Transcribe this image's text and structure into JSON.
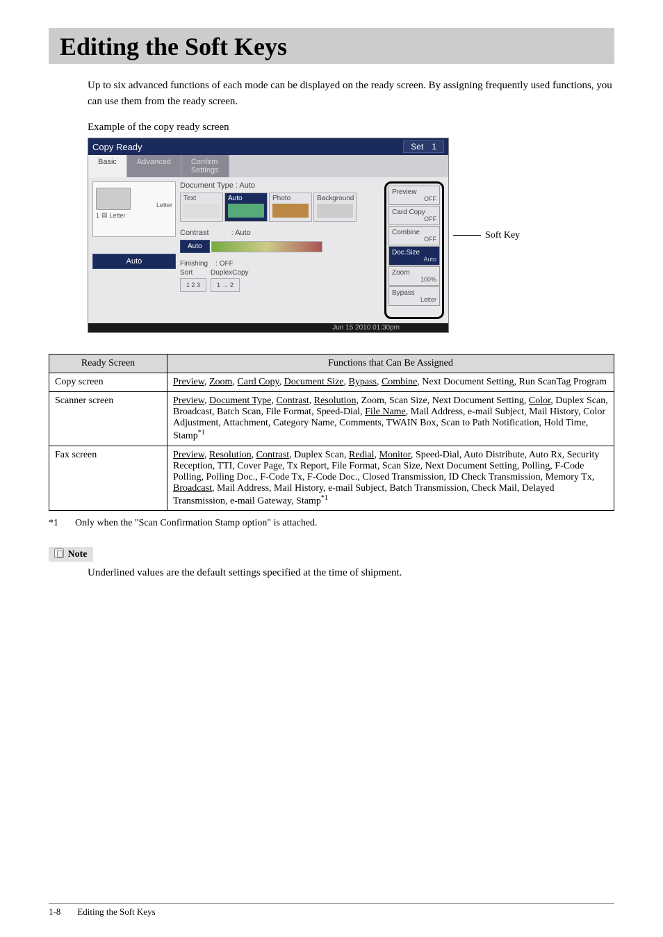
{
  "heading": "Editing the Soft Keys",
  "intro": "Up to six advanced functions of each mode can be displayed on the ready screen. By assigning frequently used functions, you can use them from the ready screen.",
  "example_caption": "Example of the copy ready screen",
  "screenshot": {
    "titlebar": "Copy Ready",
    "set_button": "Set",
    "set_count": "1",
    "tabs": {
      "basic": "Basic",
      "advanced": "Advanced",
      "confirm": "Confirm\nSettings"
    },
    "paper": {
      "letter_top": "Letter",
      "tray_num": "1",
      "tray_label": "Letter",
      "auto": "Auto"
    },
    "doc_type_label": "Document Type : Auto",
    "doc_types": {
      "text": "Text",
      "auto": "Auto",
      "photo": "Photo",
      "background": "Background"
    },
    "contrast_label": "Contrast",
    "contrast_value": ": Auto",
    "contrast_auto": "Auto",
    "finishing_label": "Finishing",
    "finishing_value": ": OFF",
    "sort_label": "Sort",
    "duplex_label": "DuplexCopy",
    "softkeys": [
      {
        "name": "Preview",
        "val": "OFF"
      },
      {
        "name": "Card Copy",
        "val": "OFF"
      },
      {
        "name": "Combine",
        "val": "OFF"
      },
      {
        "name": "Doc.Size",
        "val": "Auto",
        "selected": true
      },
      {
        "name": "Zoom",
        "val": "100%"
      },
      {
        "name": "Bypass",
        "val": "Letter"
      }
    ],
    "statusbar": "Jun 15 2010 01:30pm"
  },
  "callout_label": "Soft Key",
  "table": {
    "head_col1": "Ready Screen",
    "head_col2": "Functions that Can Be Assigned",
    "rows": [
      {
        "c1": "Copy screen",
        "segments": [
          {
            "t": "Preview",
            "u": 1
          },
          {
            "t": ", "
          },
          {
            "t": "Zoom",
            "u": 1
          },
          {
            "t": ", "
          },
          {
            "t": "Card Copy",
            "u": 1
          },
          {
            "t": ", "
          },
          {
            "t": "Document Size",
            "u": 1
          },
          {
            "t": ", "
          },
          {
            "t": "Bypass",
            "u": 1
          },
          {
            "t": ", "
          },
          {
            "t": "Combine",
            "u": 1
          },
          {
            "t": ", Next Document Setting, Run ScanTag Program"
          }
        ]
      },
      {
        "c1": "Scanner screen",
        "segments": [
          {
            "t": "Preview",
            "u": 1
          },
          {
            "t": ", "
          },
          {
            "t": "Document Type",
            "u": 1
          },
          {
            "t": ", "
          },
          {
            "t": "Contrast",
            "u": 1
          },
          {
            "t": ", "
          },
          {
            "t": "Resolution",
            "u": 1
          },
          {
            "t": ", Zoom, Scan Size, Next Document Setting, "
          },
          {
            "t": "Color",
            "u": 1
          },
          {
            "t": ", Duplex Scan, Broadcast, Batch Scan, File Format, Speed-Dial, "
          },
          {
            "t": "File Name",
            "u": 1
          },
          {
            "t": ", Mail Address, e-mail Subject, Mail History, Color Adjustment, Attachment, Category Name, Comments, TWAIN Box, Scan to Path Notification, Hold Time, Stamp"
          },
          {
            "t": "*1",
            "sup": 1
          }
        ]
      },
      {
        "c1": "Fax screen",
        "segments": [
          {
            "t": "Preview",
            "u": 1
          },
          {
            "t": ", "
          },
          {
            "t": "Resolution",
            "u": 1
          },
          {
            "t": ", "
          },
          {
            "t": "Contrast",
            "u": 1
          },
          {
            "t": ", Duplex Scan, "
          },
          {
            "t": "Redial",
            "u": 1
          },
          {
            "t": ", "
          },
          {
            "t": "Monitor",
            "u": 1
          },
          {
            "t": ", Speed-Dial, Auto Distribute, Auto Rx, Security Reception, TTI, Cover Page, Tx Report, File Format, Scan Size, Next Document Setting, Polling, F-Code Polling, Polling Doc., F-Code Tx, F-Code Doc., Closed Transmission, ID Check Transmission, Memory Tx, "
          },
          {
            "t": "Broadcast",
            "u": 1
          },
          {
            "t": ", Mail Address, Mail History, e-mail Subject, Batch Transmission, Check Mail, Delayed Transmission, e-mail Gateway, Stamp"
          },
          {
            "t": "*1",
            "sup": 1
          }
        ]
      }
    ]
  },
  "footnote_marker": "*1",
  "footnote_text": "Only when the \"Scan Confirmation Stamp option\" is attached.",
  "note_label": "Note",
  "note_text": "Underlined values are the default settings specified at the time of shipment.",
  "footer_page": "1-8",
  "footer_title": "Editing the Soft Keys"
}
